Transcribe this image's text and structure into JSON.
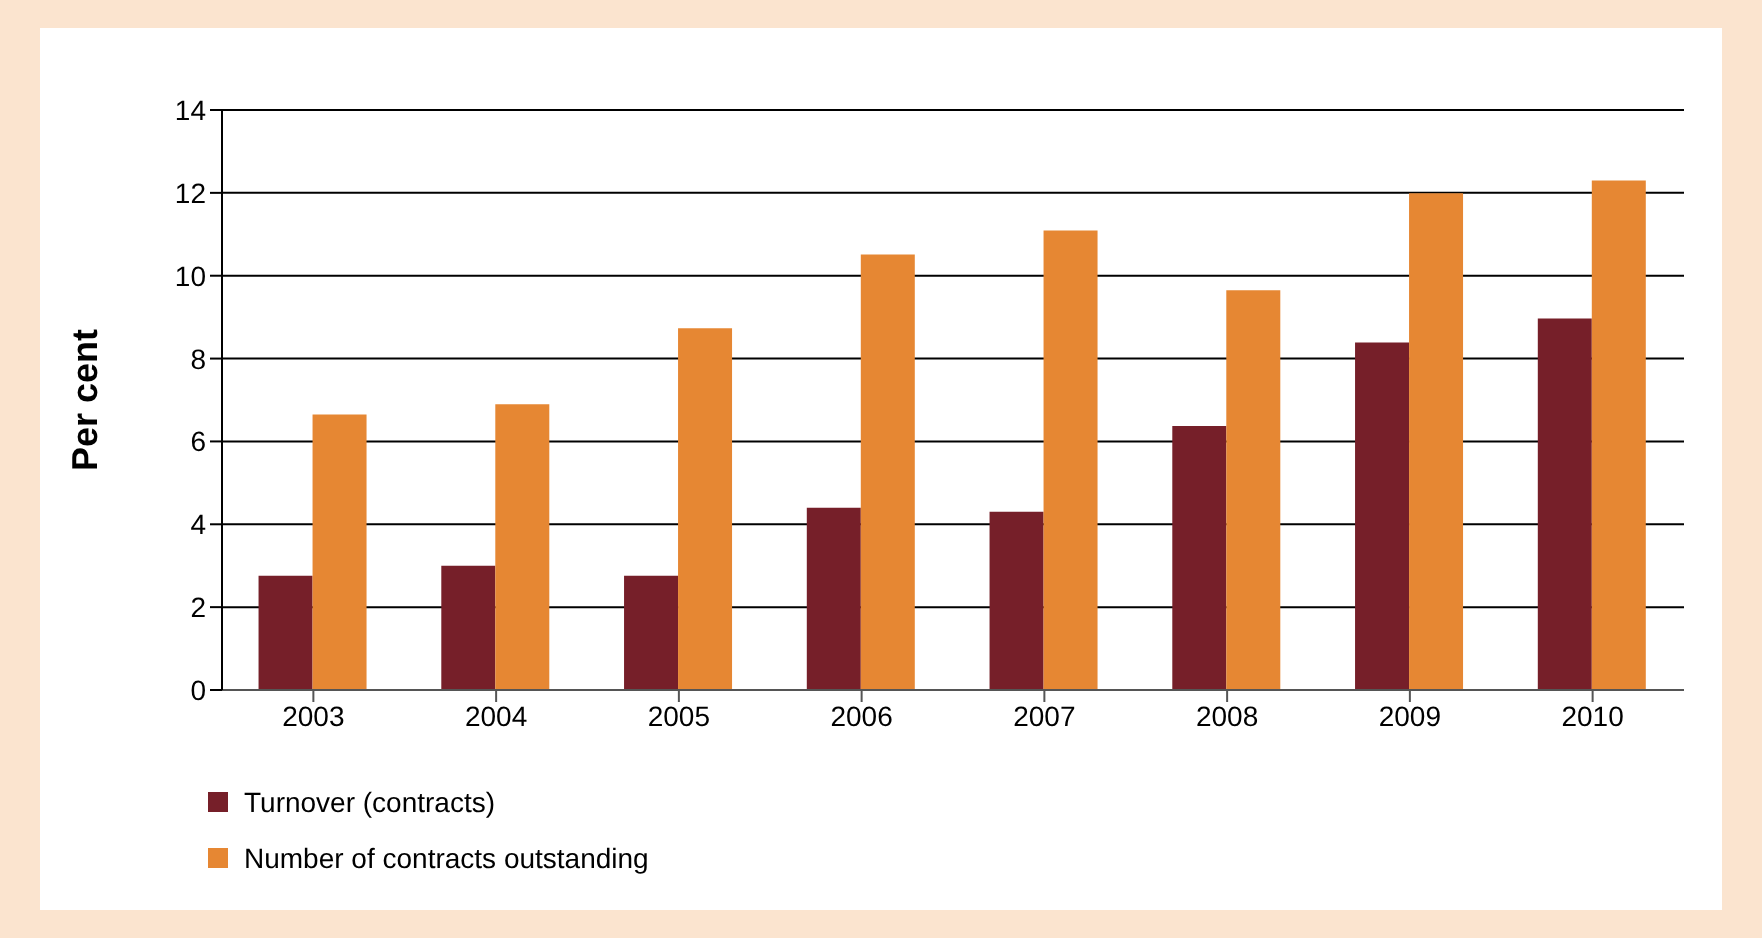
{
  "chart_data": {
    "type": "bar",
    "ylabel": "Per cent",
    "categories": [
      "2003",
      "2004",
      "2005",
      "2006",
      "2007",
      "2008",
      "2009",
      "2010"
    ],
    "series": [
      {
        "name": "Turnover (contracts)",
        "color": "#761f29",
        "values": [
          2.76,
          3.0,
          2.76,
          4.4,
          4.3,
          6.37,
          8.39,
          8.97
        ]
      },
      {
        "name": "Number of contracts outstanding",
        "color": "#e68733",
        "values": [
          6.65,
          6.9,
          8.73,
          10.51,
          11.09,
          9.65,
          11.99,
          12.3
        ]
      }
    ],
    "ylim": [
      0,
      14
    ],
    "yticks": [
      0,
      2,
      4,
      6,
      8,
      10,
      12,
      14
    ],
    "grid": "y",
    "legend": "bottom left"
  }
}
